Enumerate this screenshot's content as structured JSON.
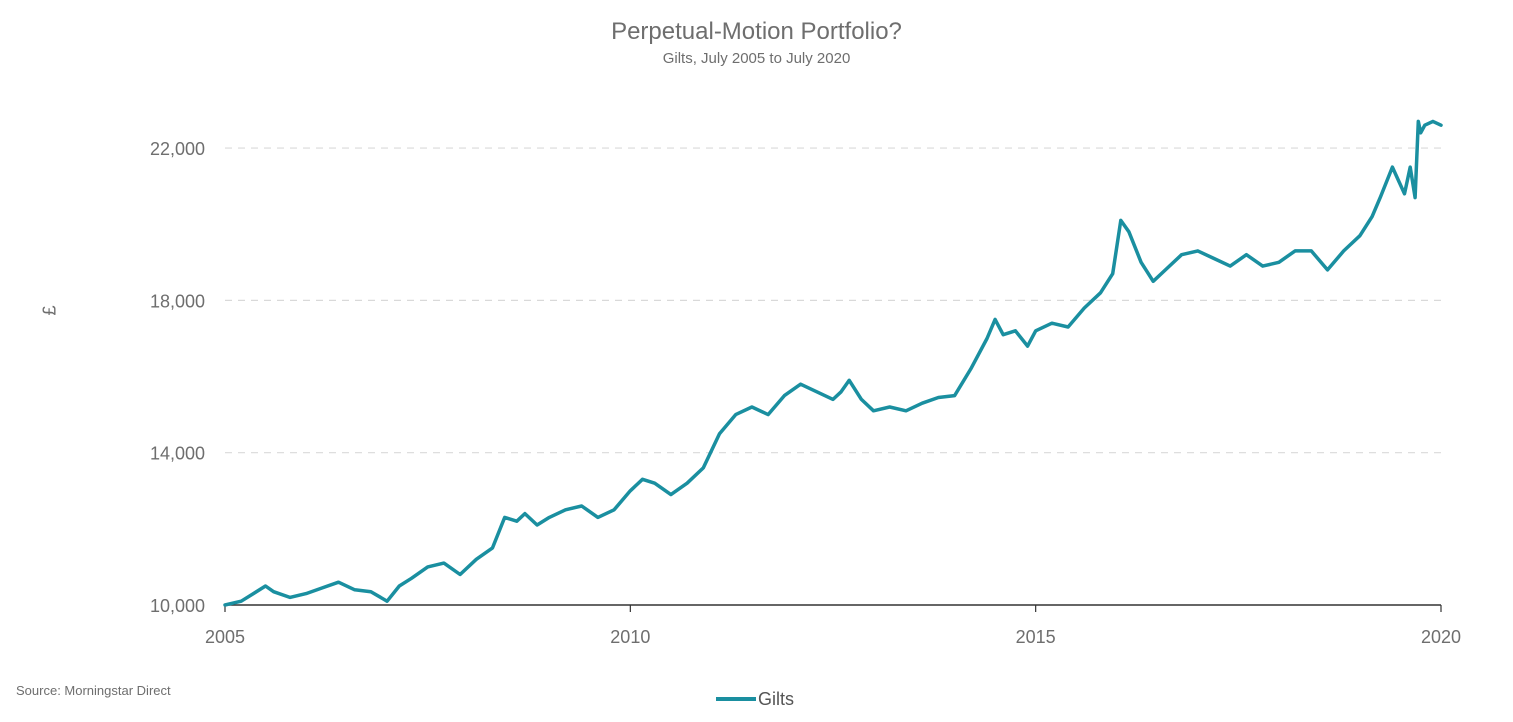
{
  "chart_data": {
    "type": "line",
    "title": "Perpetual-Motion Portfolio?",
    "subtitle": "Gilts, July 2005 to July 2020",
    "xlabel": "",
    "ylabel": "£",
    "xlim": [
      2005.0,
      2020.0
    ],
    "ylim": [
      10000,
      23000
    ],
    "xticks": [
      2005,
      2010,
      2015,
      2020
    ],
    "xtick_labels": [
      "2005",
      "2010",
      "2015",
      "2020"
    ],
    "yticks": [
      10000,
      14000,
      18000,
      22000
    ],
    "ytick_labels": [
      "10,000",
      "14,000",
      "18,000",
      "22,000"
    ],
    "grid": "horizontal dashed",
    "legend": "bottom-center",
    "source": "Source: Morningstar Direct",
    "colors": {
      "series": "#1a8fa0",
      "grid": "#d9d9d9",
      "axis": "#333333",
      "text": "#6e6e6e"
    },
    "series": [
      {
        "name": "Gilts",
        "x": [
          2005.0,
          2005.1,
          2005.2,
          2005.35,
          2005.5,
          2005.6,
          2005.8,
          2006.0,
          2006.2,
          2006.4,
          2006.6,
          2006.8,
          2007.0,
          2007.15,
          2007.3,
          2007.5,
          2007.7,
          2007.9,
          2008.1,
          2008.3,
          2008.45,
          2008.6,
          2008.7,
          2008.85,
          2009.0,
          2009.2,
          2009.4,
          2009.6,
          2009.8,
          2010.0,
          2010.15,
          2010.3,
          2010.5,
          2010.7,
          2010.9,
          2011.1,
          2011.3,
          2011.5,
          2011.7,
          2011.9,
          2012.1,
          2012.3,
          2012.5,
          2012.6,
          2012.7,
          2012.85,
          2013.0,
          2013.2,
          2013.4,
          2013.6,
          2013.8,
          2014.0,
          2014.2,
          2014.4,
          2014.5,
          2014.6,
          2014.75,
          2014.9,
          2015.0,
          2015.2,
          2015.4,
          2015.6,
          2015.8,
          2015.95,
          2016.05,
          2016.15,
          2016.3,
          2016.45,
          2016.6,
          2016.8,
          2017.0,
          2017.2,
          2017.4,
          2017.6,
          2017.8,
          2018.0,
          2018.2,
          2018.4,
          2018.6,
          2018.8,
          2019.0,
          2019.15,
          2019.25,
          2019.4,
          2019.55,
          2019.62,
          2019.68,
          2019.72,
          2019.75,
          2019.8,
          2019.9,
          2020.0
        ],
        "values": [
          10000,
          10050,
          10100,
          10300,
          10500,
          10350,
          10200,
          10300,
          10450,
          10600,
          10400,
          10350,
          10100,
          10500,
          10700,
          11000,
          11100,
          10800,
          11200,
          11500,
          12300,
          12200,
          12400,
          12100,
          12300,
          12500,
          12600,
          12300,
          12500,
          13000,
          13300,
          13200,
          12900,
          13200,
          13600,
          14500,
          15000,
          15200,
          15000,
          15500,
          15800,
          15600,
          15400,
          15600,
          15900,
          15400,
          15100,
          15200,
          15100,
          15300,
          15450,
          15500,
          16200,
          17000,
          17500,
          17100,
          17200,
          16800,
          17200,
          17400,
          17300,
          17800,
          18200,
          18700,
          20100,
          19800,
          19000,
          18500,
          18800,
          19200,
          19300,
          19100,
          18900,
          19200,
          18900,
          19000,
          19300,
          19300,
          18800,
          19300,
          19700,
          20200,
          20700,
          21500,
          20800,
          21500,
          20700,
          22700,
          22400,
          22600,
          22700,
          22600
        ]
      }
    ]
  }
}
